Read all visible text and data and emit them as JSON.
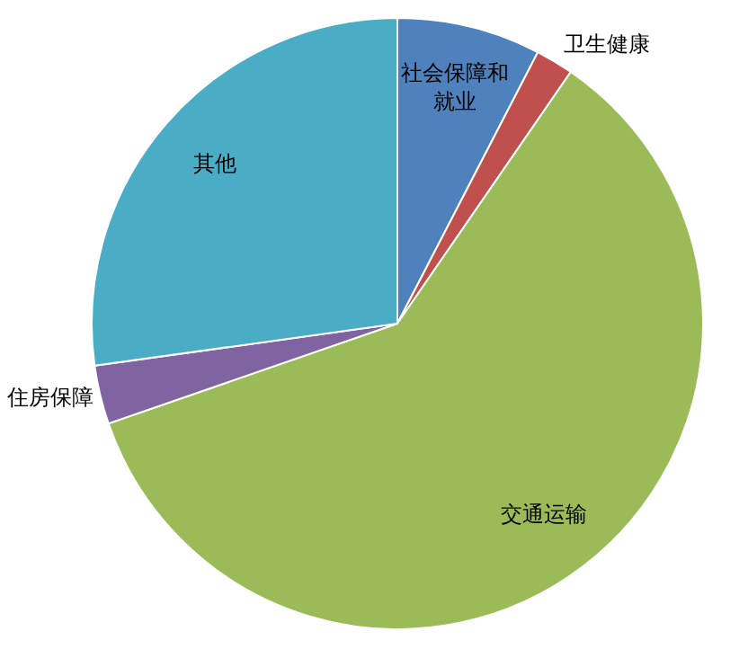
{
  "chart_data": {
    "type": "pie",
    "categories": [
      "社会保障和就业",
      "卫生健康",
      "交通运输",
      "住房保障",
      "其他"
    ],
    "values": [
      7.6,
      2.0,
      60.1,
      3.1,
      27.2
    ],
    "colors": [
      "#4f81bd",
      "#c0504d",
      "#9bbb59",
      "#8064a2",
      "#4bacc6"
    ]
  }
}
